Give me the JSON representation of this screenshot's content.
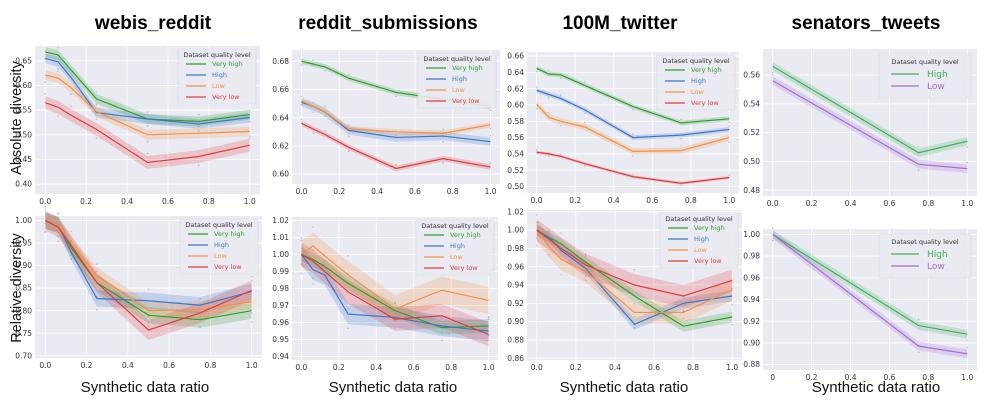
{
  "colors": {
    "very_high": "#2ca02c",
    "high": "#3a78c8",
    "low": "#f59042",
    "very_low": "#e23a3a",
    "two_high": "#3fb05a",
    "two_low": "#a56cd6"
  },
  "column_titles": [
    "webis_reddit",
    "reddit_submissions",
    "100M_twitter",
    "senators_tweets"
  ],
  "row_labels": [
    "Absolute diversity",
    "Relative diversity"
  ],
  "x_labels": [
    "Synthetic data ratio",
    "Synthetic data ratio",
    "Synthetic data ratio",
    "Synthetic data ratio"
  ],
  "chart_data": [
    {
      "type": "line",
      "id": "abs-webis",
      "title": "webis_reddit",
      "ylabel": "Absolute diversity",
      "xlim": [
        -0.05,
        1.05
      ],
      "ylim": [
        0.38,
        0.68
      ],
      "xticks": [
        0.0,
        0.2,
        0.4,
        0.6,
        0.8,
        1.0
      ],
      "xtick_labels": [
        "0.0",
        "0.2",
        "0.4",
        "0.6",
        "0.8",
        "1.0"
      ],
      "yticks": [
        0.4,
        0.45,
        0.5,
        0.55,
        0.6,
        0.65
      ],
      "ytick_labels": [
        "0.40",
        "0.45",
        "0.50",
        "0.55",
        "0.60",
        "0.65"
      ],
      "legend": {
        "title": "Dataset quality level",
        "style": "small"
      },
      "x": [
        0,
        0.0625,
        0.125,
        0.25,
        0.5,
        0.75,
        1.0
      ],
      "series": [
        {
          "name": "Very high",
          "color": "very_high",
          "values": [
            0.668,
            0.662,
            0.632,
            0.573,
            0.532,
            0.527,
            0.541
          ],
          "band": 0.01
        },
        {
          "name": "High",
          "color": "high",
          "values": [
            0.655,
            0.648,
            0.617,
            0.545,
            0.532,
            0.522,
            0.535
          ],
          "band": 0.01
        },
        {
          "name": "Low",
          "color": "low",
          "values": [
            0.621,
            0.615,
            0.596,
            0.547,
            0.5,
            0.503,
            0.507
          ],
          "band": 0.01
        },
        {
          "name": "Very low",
          "color": "very_low",
          "values": [
            0.565,
            0.556,
            0.54,
            0.511,
            0.444,
            0.456,
            0.479
          ],
          "band": 0.013
        }
      ]
    },
    {
      "type": "line",
      "id": "abs-reddit",
      "title": "reddit_submissions",
      "ylabel": "",
      "xlim": [
        -0.05,
        1.05
      ],
      "ylim": [
        0.593,
        0.688
      ],
      "xticks": [
        0.0,
        0.2,
        0.4,
        0.6,
        0.8,
        1.0
      ],
      "xtick_labels": [
        "0.0",
        "0.2",
        "0.4",
        "0.6",
        "0.8",
        "1.0"
      ],
      "yticks": [
        0.6,
        0.62,
        0.64,
        0.66,
        0.68
      ],
      "ytick_labels": [
        "0.60",
        "0.62",
        "0.64",
        "0.66",
        "0.68"
      ],
      "legend": {
        "title": "Dataset quality level",
        "style": "small"
      },
      "x": [
        0,
        0.0625,
        0.125,
        0.25,
        0.5,
        0.75,
        1.0
      ],
      "series": [
        {
          "name": "Very high",
          "color": "very_high",
          "values": [
            0.68,
            0.678,
            0.676,
            0.668,
            0.658,
            0.653,
            0.648
          ],
          "band": 0.002
        },
        {
          "name": "High",
          "color": "high",
          "values": [
            0.651,
            0.648,
            0.644,
            0.631,
            0.626,
            0.627,
            0.623
          ],
          "band": 0.003
        },
        {
          "name": "Low",
          "color": "low",
          "values": [
            0.652,
            0.648,
            0.644,
            0.632,
            0.63,
            0.629,
            0.635
          ],
          "band": 0.002
        },
        {
          "name": "Very low",
          "color": "very_low",
          "values": [
            0.636,
            0.632,
            0.628,
            0.619,
            0.604,
            0.611,
            0.605
          ],
          "band": 0.002
        }
      ]
    },
    {
      "type": "line",
      "id": "abs-twitter",
      "title": "100M_twitter",
      "ylabel": "",
      "xlim": [
        -0.05,
        1.05
      ],
      "ylim": [
        0.492,
        0.665
      ],
      "xticks": [
        0.0,
        0.2,
        0.4,
        0.6,
        0.8,
        1.0
      ],
      "xtick_labels": [
        "0.0",
        "0.2",
        "0.4",
        "0.6",
        "0.8",
        "1.0"
      ],
      "yticks": [
        0.5,
        0.52,
        0.54,
        0.56,
        0.58,
        0.6,
        0.62,
        0.64,
        0.66
      ],
      "ytick_labels": [
        "0.50",
        "0.52",
        "0.54",
        "0.56",
        "0.58",
        "0.60",
        "0.62",
        "0.64",
        "0.66"
      ],
      "legend": {
        "title": "Dataset quality level",
        "style": "small"
      },
      "x": [
        0,
        0.0625,
        0.125,
        0.25,
        0.5,
        0.75,
        1.0
      ],
      "series": [
        {
          "name": "Very high",
          "color": "very_high",
          "values": [
            0.645,
            0.638,
            0.637,
            0.624,
            0.598,
            0.578,
            0.583
          ],
          "band": 0.003
        },
        {
          "name": "High",
          "color": "high",
          "values": [
            0.618,
            0.613,
            0.608,
            0.594,
            0.56,
            0.563,
            0.57
          ],
          "band": 0.003
        },
        {
          "name": "Low",
          "color": "low",
          "values": [
            0.601,
            0.585,
            0.58,
            0.573,
            0.543,
            0.544,
            0.56
          ],
          "band": 0.004
        },
        {
          "name": "Very low",
          "color": "very_low",
          "values": [
            0.542,
            0.54,
            0.537,
            0.528,
            0.512,
            0.504,
            0.511
          ],
          "band": 0.002
        }
      ]
    },
    {
      "type": "line",
      "id": "abs-senators",
      "title": "senators_tweets",
      "ylabel": "",
      "xlim": [
        -0.05,
        1.05
      ],
      "ylim": [
        0.476,
        0.578
      ],
      "xticks": [
        0.0,
        0.2,
        0.4,
        0.6,
        0.8,
        1.0
      ],
      "xtick_labels": [
        "0.0",
        "0.2",
        "0.4",
        "0.6",
        "0.8",
        "1.0"
      ],
      "yticks": [
        0.48,
        0.5,
        0.52,
        0.54,
        0.56
      ],
      "ytick_labels": [
        "0.48",
        "0.50",
        "0.52",
        "0.54",
        "0.56"
      ],
      "legend": {
        "title": "Dataset quality level",
        "style": "large"
      },
      "x": [
        0,
        0.75,
        1.0
      ],
      "series": [
        {
          "name": "High",
          "color": "two_high",
          "values": [
            0.566,
            0.506,
            0.514
          ],
          "band": 0.003
        },
        {
          "name": "Low",
          "color": "two_low",
          "values": [
            0.556,
            0.498,
            0.495
          ],
          "band": 0.003
        }
      ]
    },
    {
      "type": "line",
      "id": "rel-webis",
      "title": "",
      "ylabel": "Relative diversity",
      "xlim": [
        -0.05,
        1.05
      ],
      "ylim": [
        0.695,
        1.01
      ],
      "xticks": [
        0.0,
        0.2,
        0.4,
        0.6,
        0.8,
        1.0
      ],
      "xtick_labels": [
        "0.0",
        "0.2",
        "0.4",
        "0.6",
        "0.8",
        "1.0"
      ],
      "yticks": [
        0.7,
        0.75,
        0.8,
        0.85,
        0.9,
        0.95,
        1.0
      ],
      "ytick_labels": [
        "0.70",
        "0.75",
        "0.80",
        "0.85",
        "0.90",
        "0.95",
        "1.00"
      ],
      "legend": {
        "title": "Dataset quality level",
        "style": "small"
      },
      "x": [
        0,
        0.0625,
        0.125,
        0.25,
        0.5,
        0.75,
        1.0
      ],
      "series": [
        {
          "name": "Very high",
          "color": "very_high",
          "values": [
            1.0,
            0.99,
            0.94,
            0.862,
            0.79,
            0.78,
            0.8
          ],
          "band": 0.018
        },
        {
          "name": "High",
          "color": "high",
          "values": [
            1.0,
            0.99,
            0.93,
            0.827,
            0.822,
            0.812,
            0.842
          ],
          "band": 0.018
        },
        {
          "name": "Low",
          "color": "low",
          "values": [
            1.0,
            0.99,
            0.948,
            0.878,
            0.8,
            0.802,
            0.82
          ],
          "band": 0.018
        },
        {
          "name": "Very low",
          "color": "very_low",
          "values": [
            1.0,
            0.985,
            0.945,
            0.862,
            0.757,
            0.795,
            0.845
          ],
          "band": 0.022
        }
      ]
    },
    {
      "type": "line",
      "id": "rel-reddit",
      "title": "",
      "ylabel": "",
      "xlim": [
        -0.05,
        1.05
      ],
      "ylim": [
        0.938,
        1.022
      ],
      "xticks": [
        0.0,
        0.2,
        0.4,
        0.6,
        0.8,
        1.0
      ],
      "xtick_labels": [
        "0.0",
        "0.2",
        "0.4",
        "0.6",
        "0.8",
        "1.0"
      ],
      "yticks": [
        0.94,
        0.95,
        0.96,
        0.97,
        0.98,
        0.99,
        1.0,
        1.01,
        1.02
      ],
      "ytick_labels": [
        "0.94",
        "0.95",
        "0.96",
        "0.97",
        "0.98",
        "0.99",
        "1.00",
        "1.01",
        "1.02"
      ],
      "legend": {
        "title": "Dataset quality level",
        "style": "small"
      },
      "x": [
        0,
        0.0625,
        0.125,
        0.25,
        0.5,
        0.75,
        1.0
      ],
      "series": [
        {
          "name": "Very high",
          "color": "very_high",
          "values": [
            1.0,
            0.997,
            0.993,
            0.983,
            0.967,
            0.957,
            0.958
          ],
          "band": 0.004
        },
        {
          "name": "High",
          "color": "high",
          "values": [
            1.0,
            0.991,
            0.988,
            0.965,
            0.963,
            0.958,
            0.955
          ],
          "band": 0.006
        },
        {
          "name": "Low",
          "color": "low",
          "values": [
            1.0,
            1.005,
            0.999,
            0.988,
            0.968,
            0.979,
            0.973
          ],
          "band": 0.008
        },
        {
          "name": "Very low",
          "color": "very_low",
          "values": [
            1.0,
            0.996,
            0.99,
            0.978,
            0.962,
            0.964,
            0.953
          ],
          "band": 0.007
        }
      ]
    },
    {
      "type": "line",
      "id": "rel-twitter",
      "title": "",
      "ylabel": "",
      "xlim": [
        -0.05,
        1.05
      ],
      "ylim": [
        0.858,
        1.022
      ],
      "xticks": [
        0.0,
        0.2,
        0.4,
        0.6,
        0.8,
        1.0
      ],
      "xtick_labels": [
        "0.0",
        "0.2",
        "0.4",
        "0.6",
        "0.8",
        "1.0"
      ],
      "yticks": [
        0.86,
        0.88,
        0.9,
        0.92,
        0.94,
        0.96,
        0.98,
        1.0,
        1.02
      ],
      "ytick_labels": [
        "0.86",
        "0.88",
        "0.90",
        "0.92",
        "0.94",
        "0.96",
        "0.98",
        "1.00",
        "1.02"
      ],
      "legend": {
        "title": "Dataset quality level",
        "style": "small"
      },
      "x": [
        0,
        0.0625,
        0.125,
        0.25,
        0.5,
        0.75,
        1.0
      ],
      "series": [
        {
          "name": "Very high",
          "color": "very_high",
          "values": [
            1.0,
            0.992,
            0.985,
            0.965,
            0.928,
            0.895,
            0.905
          ],
          "band": 0.006
        },
        {
          "name": "High",
          "color": "high",
          "values": [
            1.0,
            0.992,
            0.978,
            0.958,
            0.897,
            0.92,
            0.928
          ],
          "band": 0.006
        },
        {
          "name": "Low",
          "color": "low",
          "values": [
            1.0,
            0.982,
            0.968,
            0.955,
            0.91,
            0.91,
            0.935
          ],
          "band": 0.012
        },
        {
          "name": "Very low",
          "color": "very_low",
          "values": [
            1.0,
            0.99,
            0.98,
            0.962,
            0.94,
            0.928,
            0.945
          ],
          "band": 0.012
        }
      ]
    },
    {
      "type": "line",
      "id": "rel-senators",
      "title": "",
      "ylabel": "",
      "xlim": [
        -0.05,
        1.05
      ],
      "ylim": [
        0.875,
        1.005
      ],
      "xticks": [
        0.0,
        0.2,
        0.4,
        0.6,
        0.8,
        1.0
      ],
      "xtick_labels": [
        "0",
        "0.2",
        "0.4",
        "0.6",
        "0.8",
        "1.0"
      ],
      "yticks": [
        0.88,
        0.9,
        0.92,
        0.94,
        0.96,
        0.98,
        1.0
      ],
      "ytick_labels": [
        "0.88",
        "0.90",
        "0.92",
        "0.94",
        "0.96",
        "0.98",
        "1.00"
      ],
      "legend": {
        "title": "Dataset quality level",
        "style": "large"
      },
      "x": [
        0,
        0.75,
        1.0
      ],
      "series": [
        {
          "name": "High",
          "color": "two_high",
          "values": [
            1.0,
            0.916,
            0.908
          ],
          "band": 0.004
        },
        {
          "name": "Low",
          "color": "two_low",
          "values": [
            1.0,
            0.897,
            0.89
          ],
          "band": 0.004
        }
      ]
    }
  ]
}
